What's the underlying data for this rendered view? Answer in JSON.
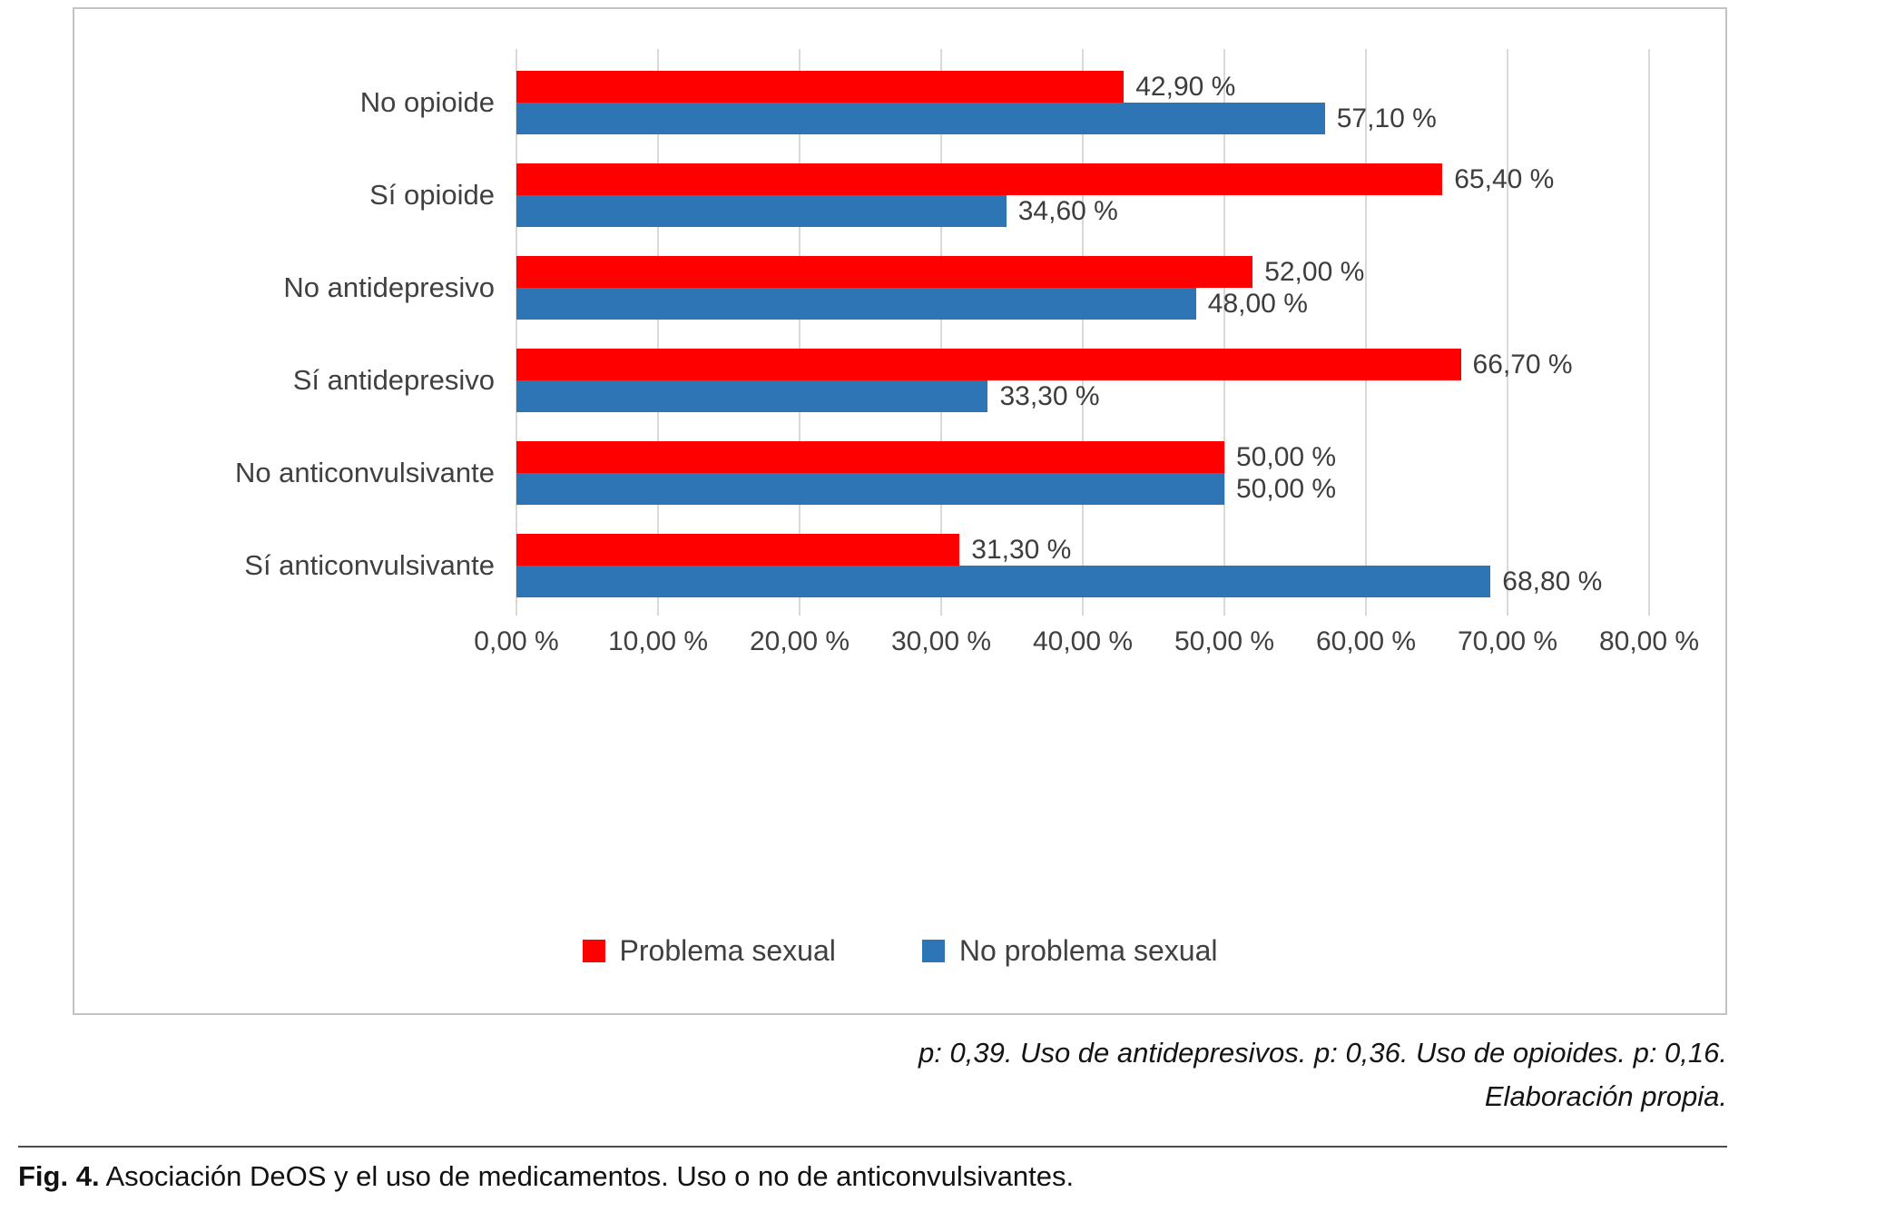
{
  "chart_data": {
    "type": "bar",
    "orientation": "horizontal",
    "title": "",
    "categories": [
      "No opioide",
      "Sí opioide",
      "No antidepresivo",
      "Sí antidepresivo",
      "No anticonvulsivante",
      "Sí anticonvulsivante"
    ],
    "series": [
      {
        "name": "Problema sexual",
        "color": "#FF0000",
        "values": [
          42.9,
          65.4,
          52.0,
          66.7,
          50.0,
          31.3
        ],
        "labels": [
          "42,90 %",
          "65,40 %",
          "52,00 %",
          "66,70 %",
          "50,00 %",
          "31,30 %"
        ]
      },
      {
        "name": "No problema sexual",
        "color": "#2E75B6",
        "values": [
          57.1,
          34.6,
          48.0,
          33.3,
          50.0,
          68.8
        ],
        "labels": [
          "57,10 %",
          "34,60 %",
          "48,00 %",
          "33,30 %",
          "50,00 %",
          "68,80 %"
        ]
      }
    ],
    "xlim": [
      0,
      80
    ],
    "x_ticks": [
      "0,00 %",
      "10,00 %",
      "20,00 %",
      "30,00 %",
      "40,00 %",
      "50,00 %",
      "60,00 %",
      "70,00 %",
      "80,00 %"
    ],
    "grid": true,
    "gridline_color": "#D9D9D9",
    "legend_position": "bottom"
  },
  "notes": {
    "line1": "p: 0,39. Uso de antidepresivos. p: 0,36. Uso de opioides. p: 0,16.",
    "line2": "Elaboración propia."
  },
  "caption": {
    "prefix": "Fig. 4.",
    "text": " Asociación DeOS y el uso de medicamentos. Uso o no de anticonvulsivantes."
  }
}
